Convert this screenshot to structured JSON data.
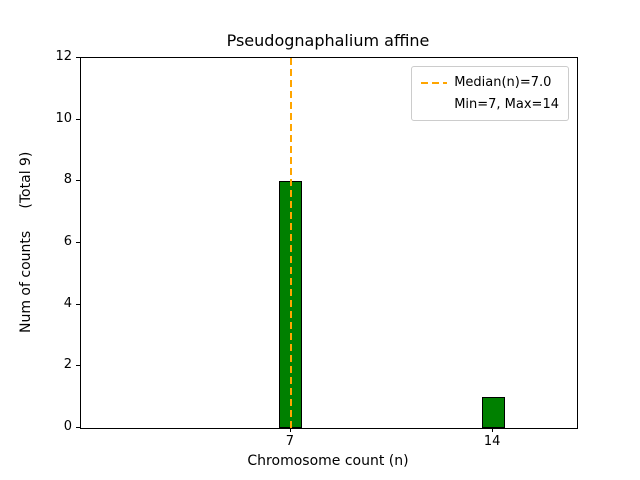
{
  "figure": {
    "title": "Pseudognaphalium affine",
    "xlabel": "Chromosome count (n)",
    "ylabel": "Num of counts     (Total 9)"
  },
  "legend": {
    "entries": [
      {
        "handle": "orange-dashed-line",
        "label": "Median(n)=7.0"
      },
      {
        "handle": "none",
        "label": "Min=7, Max=14"
      }
    ]
  },
  "chart_data": {
    "type": "bar",
    "title": "Pseudognaphalium affine",
    "xlabel": "Chromosome count (n)",
    "ylabel": "Num of counts (Total 9)",
    "x": [
      7,
      14
    ],
    "counts": [
      8,
      1
    ],
    "total_counts": 9,
    "median": 7.0,
    "min": 7,
    "max": 14,
    "xticks": [
      7,
      14
    ],
    "yticks": [
      0,
      2,
      4,
      6,
      8,
      10,
      12
    ],
    "xlim": [
      -0.26,
      16.9
    ],
    "ylim": [
      0,
      12
    ],
    "bar_width_units": 0.8,
    "bar_color": "#008000",
    "bar_edge_color": "#000000",
    "median_line_color": "#FFA500",
    "median_line_style": "dashed",
    "legend_position": "upper right",
    "grid": false
  }
}
